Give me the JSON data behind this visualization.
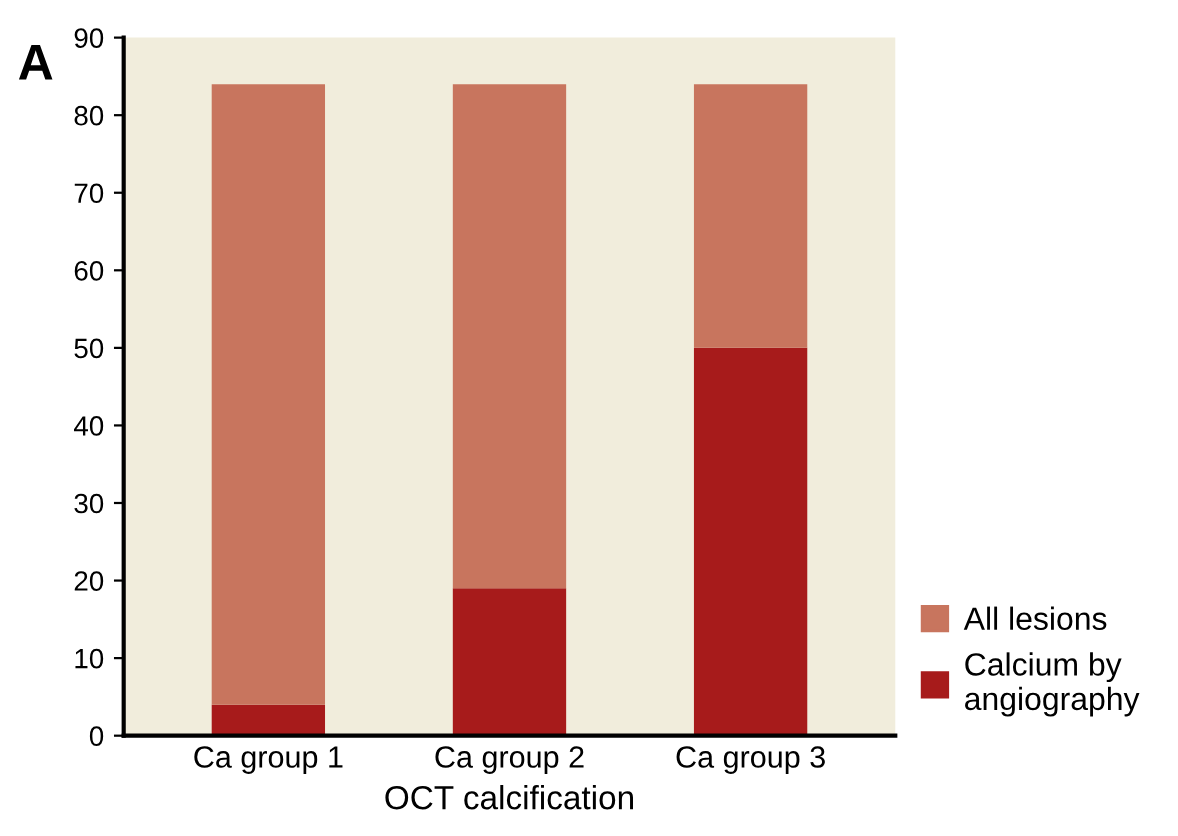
{
  "chart_data": {
    "type": "bar",
    "stacked": true,
    "xlabel": "OCT calcification",
    "annotations": [
      "A"
    ],
    "categories": [
      "Ca group 1",
      "Ca group 2",
      "Ca group 3"
    ],
    "series": [
      {
        "name": "Calcium by angiography",
        "color": "#a71b1b",
        "values": [
          4,
          19,
          50
        ]
      },
      {
        "name": "All lesions",
        "color": "#c8755e",
        "values": [
          80,
          65,
          34
        ]
      }
    ],
    "ylim": [
      0,
      90
    ],
    "yticks": [
      0,
      10,
      20,
      30,
      40,
      50,
      60,
      70,
      80,
      90
    ],
    "grid": false,
    "legend": "right"
  }
}
